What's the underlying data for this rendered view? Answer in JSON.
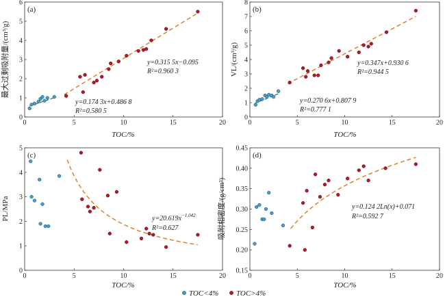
{
  "colors": {
    "blue": "#4a9cc6",
    "red": "#b5172b",
    "fit_blue": "#2d5fa8",
    "fit_orange": "#e0802a"
  },
  "legend": {
    "item_low": "TOC<4%",
    "item_high": "TOC>4%"
  },
  "chart_data": [
    {
      "type": "scatter",
      "panel_label": "(a)",
      "xlabel": "TOC/%",
      "ylabel": "最大过剩吸附量/(cm³/g)",
      "xlim": [
        0,
        20
      ],
      "ylim": [
        0,
        6
      ],
      "xticks": [
        0,
        5,
        10,
        15,
        20
      ],
      "yticks": [
        0,
        1,
        2,
        3,
        4,
        5,
        6
      ],
      "series": [
        {
          "name": "TOC<4%",
          "color": "blue",
          "x": [
            0.5,
            0.7,
            1.0,
            1.4,
            1.6,
            1.8,
            2.0,
            2.3,
            3.0
          ],
          "y": [
            0.45,
            0.65,
            0.7,
            0.8,
            0.95,
            1.05,
            0.85,
            1.0,
            1.05
          ]
        },
        {
          "name": "TOC>4%",
          "color": "red",
          "x": [
            4.2,
            5.6,
            5.9,
            6.1,
            7.0,
            7.3,
            7.8,
            8.5,
            8.7,
            9.5,
            10.3,
            11.5,
            12.0,
            12.3,
            12.8,
            14.3,
            17.5
          ],
          "y": [
            1.1,
            2.1,
            1.3,
            2.2,
            1.8,
            1.9,
            2.1,
            2.5,
            2.8,
            2.9,
            3.2,
            3.45,
            3.5,
            3.55,
            4.0,
            4.6,
            5.5
          ]
        }
      ],
      "fits": [
        {
          "kind": "linear",
          "a": 0.1743,
          "b": 0.4868,
          "x_range": [
            0.5,
            3.2
          ],
          "color": "fit_blue",
          "equation": "y=0.174 3x+0.486 8",
          "r2": "R²=0.580 5"
        },
        {
          "kind": "linear",
          "a": 0.3155,
          "b": -0.095,
          "x_range": [
            4.0,
            17.5
          ],
          "color": "fit_orange",
          "equation": "y=0.315 5x−0.095",
          "r2": "R²=0.960 3"
        }
      ]
    },
    {
      "type": "scatter",
      "panel_label": "(b)",
      "xlabel": "TOC/%",
      "ylabel": "VL/(cm³/g)",
      "xlim": [
        0,
        20
      ],
      "ylim": [
        0,
        8
      ],
      "xticks": [
        0,
        5,
        10,
        15,
        20
      ],
      "yticks": [
        0,
        1,
        2,
        3,
        4,
        5,
        6,
        7,
        8
      ],
      "series": [
        {
          "name": "TOC<4%",
          "color": "blue",
          "x": [
            0.6,
            0.8,
            1.0,
            1.3,
            1.6,
            1.8,
            2.0,
            2.3,
            2.5,
            3.0
          ],
          "y": [
            0.85,
            1.1,
            1.2,
            1.25,
            1.5,
            1.4,
            1.55,
            1.5,
            1.4,
            1.8
          ]
        },
        {
          "name": "TOC>4%",
          "color": "red",
          "x": [
            4.2,
            5.6,
            5.9,
            6.1,
            6.8,
            7.2,
            7.5,
            8.3,
            8.6,
            9.4,
            10.3,
            11.5,
            12.0,
            12.5,
            12.8,
            14.4,
            17.5
          ],
          "y": [
            2.4,
            3.4,
            2.8,
            3.2,
            2.9,
            2.9,
            3.6,
            3.8,
            4.1,
            4.6,
            4.2,
            4.5,
            5.0,
            4.9,
            5.1,
            5.9,
            7.4
          ]
        }
      ],
      "fits": [
        {
          "kind": "linear",
          "a": 0.2706,
          "b": 0.8079,
          "x_range": [
            0.5,
            3.2
          ],
          "color": "fit_blue",
          "equation": "y=0.270 6x+0.807 9",
          "r2": "R²=0.777 1"
        },
        {
          "kind": "linear",
          "a": 0.347,
          "b": 0.9306,
          "x_range": [
            4.0,
            17.5
          ],
          "color": "fit_orange",
          "equation": "y=0.347x+0.930 6",
          "r2": "R²=0.944 5"
        }
      ]
    },
    {
      "type": "scatter",
      "panel_label": "(c)",
      "xlabel": "TOC/%",
      "ylabel": "PL/MPa",
      "xlim": [
        0,
        20
      ],
      "ylim": [
        0,
        5
      ],
      "xticks": [
        0,
        5,
        10,
        15,
        20
      ],
      "yticks": [
        0,
        1,
        2,
        3,
        4,
        5
      ],
      "series": [
        {
          "name": "TOC<4%",
          "color": "blue",
          "x": [
            0.6,
            0.7,
            1.0,
            1.5,
            1.6,
            1.8,
            2.1,
            2.4,
            3.5
          ],
          "y": [
            4.45,
            3.0,
            2.85,
            3.7,
            1.9,
            2.7,
            1.8,
            1.8,
            3.85
          ]
        },
        {
          "name": "TOC>4%",
          "color": "red",
          "x": [
            5.7,
            5.8,
            6.4,
            6.6,
            7.0,
            7.6,
            8.4,
            8.6,
            9.3,
            10.3,
            11.8,
            12.3,
            12.6,
            13.0,
            14.3,
            17.5
          ],
          "y": [
            4.8,
            2.9,
            2.6,
            2.4,
            2.55,
            4.1,
            3.05,
            1.5,
            3.2,
            1.15,
            1.3,
            1.7,
            1.5,
            1.45,
            0.95,
            1.45
          ]
        }
      ],
      "fits": [
        {
          "kind": "power",
          "a": 20.619,
          "b": -1.042,
          "x_range": [
            4.3,
            17.5
          ],
          "color": "fit_orange",
          "equation_base": "y=20.619x",
          "equation_exp": "−1.042",
          "r2": "R²=0.627"
        }
      ]
    },
    {
      "type": "scatter",
      "panel_label": "(d)",
      "xlabel": "TOC/%",
      "ylabel": "吸附相密度/(g/cm³)",
      "xlim": [
        0,
        20
      ],
      "ylim": [
        0.15,
        0.45
      ],
      "xticks": [
        0,
        5,
        10,
        15,
        20
      ],
      "yticks": [
        0.15,
        0.2,
        0.25,
        0.3,
        0.35,
        0.4,
        0.45
      ],
      "ytick_labels": [
        "0.15",
        "0.20",
        "0.25",
        "0.30",
        "0.35",
        "0.40",
        "0.45"
      ],
      "series": [
        {
          "name": "TOC<4%",
          "color": "blue",
          "x": [
            0.5,
            0.7,
            1.0,
            1.3,
            1.5,
            1.7,
            2.0,
            2.3,
            3.5
          ],
          "y": [
            0.215,
            0.305,
            0.31,
            0.275,
            0.275,
            0.3,
            0.34,
            0.29,
            0.26
          ]
        },
        {
          "name": "TOC>4%",
          "color": "red",
          "x": [
            4.2,
            5.6,
            5.8,
            6.0,
            6.6,
            6.9,
            7.4,
            7.9,
            8.3,
            9.3,
            10.3,
            11.5,
            12.0,
            12.5,
            14.3,
            17.5
          ],
          "y": [
            0.21,
            0.315,
            0.2,
            0.345,
            0.255,
            0.385,
            0.33,
            0.36,
            0.37,
            0.335,
            0.375,
            0.395,
            0.405,
            0.37,
            0.4,
            0.41
          ]
        }
      ],
      "fits": [
        {
          "kind": "log",
          "a": 0.1242,
          "b": 0.071,
          "x_range": [
            4.3,
            17.5
          ],
          "color": "fit_orange",
          "equation": "y=0.124 2Ln(x)+0.071",
          "r2": "R²=0.592 7"
        }
      ]
    }
  ]
}
